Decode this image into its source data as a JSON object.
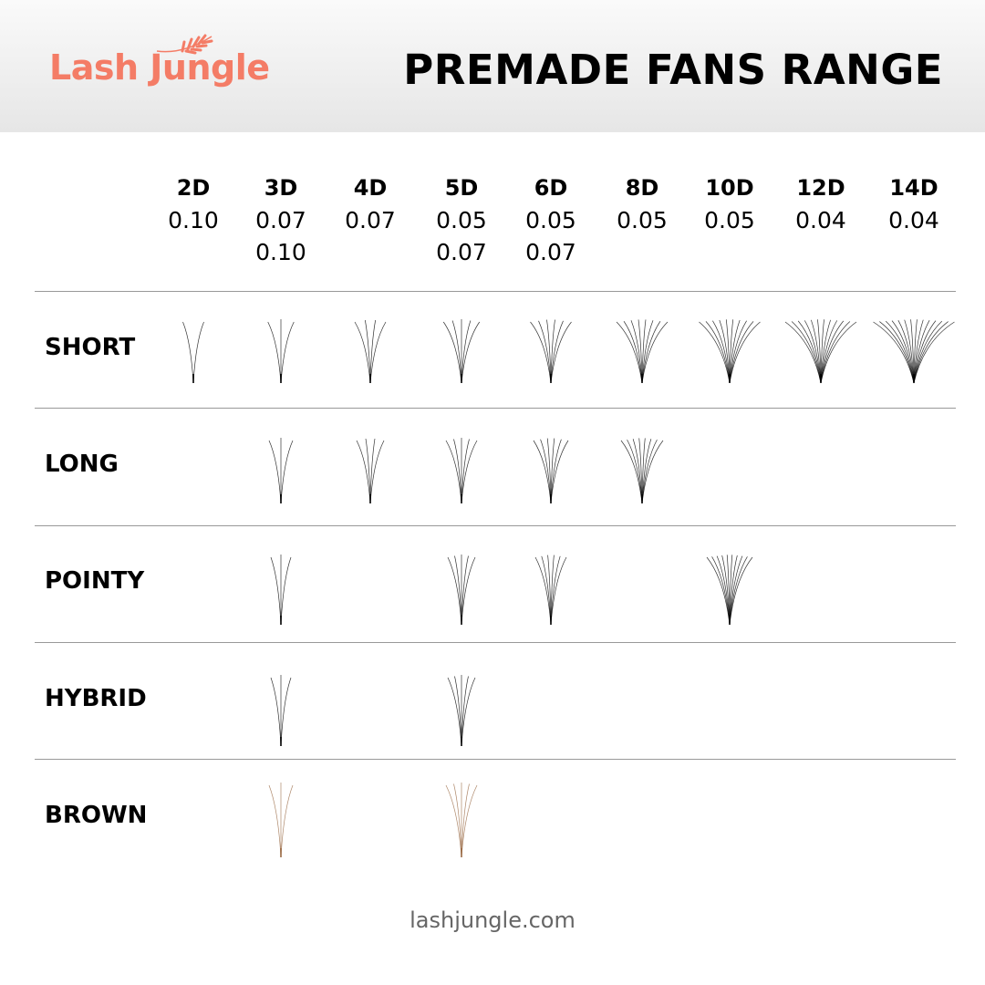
{
  "brand": {
    "name": "Lash Jungle",
    "color": "#f47c66"
  },
  "title": "PREMADE FANS RANGE",
  "columns": [
    {
      "label": "2D",
      "fibers": 2,
      "thickness": [
        "0.10"
      ]
    },
    {
      "label": "3D",
      "fibers": 3,
      "thickness": [
        "0.07",
        "0.10"
      ]
    },
    {
      "label": "4D",
      "fibers": 4,
      "thickness": [
        "0.07"
      ]
    },
    {
      "label": "5D",
      "fibers": 5,
      "thickness": [
        "0.05",
        "0.07"
      ]
    },
    {
      "label": "6D",
      "fibers": 6,
      "thickness": [
        "0.05",
        "0.07"
      ]
    },
    {
      "label": "8D",
      "fibers": 8,
      "thickness": [
        "0.05"
      ]
    },
    {
      "label": "10D",
      "fibers": 10,
      "thickness": [
        "0.05"
      ]
    },
    {
      "label": "12D",
      "fibers": 12,
      "thickness": [
        "0.04"
      ]
    },
    {
      "label": "14D",
      "fibers": 14,
      "thickness": [
        "0.04"
      ]
    }
  ],
  "rows": [
    {
      "label": "SHORT",
      "available": [
        "2D",
        "3D",
        "4D",
        "5D",
        "6D",
        "8D",
        "10D",
        "12D",
        "14D"
      ],
      "color": "#000000"
    },
    {
      "label": "LONG",
      "available": [
        "3D",
        "4D",
        "5D",
        "6D",
        "8D"
      ],
      "color": "#000000"
    },
    {
      "label": "POINTY",
      "available": [
        "3D",
        "5D",
        "6D",
        "10D"
      ],
      "color": "#000000"
    },
    {
      "label": "HYBRID",
      "available": [
        "3D",
        "5D"
      ],
      "color": "#000000"
    },
    {
      "label": "BROWN",
      "available": [
        "3D",
        "5D"
      ],
      "color": "#9a6a45"
    }
  ],
  "footer": "lashjungle.com"
}
